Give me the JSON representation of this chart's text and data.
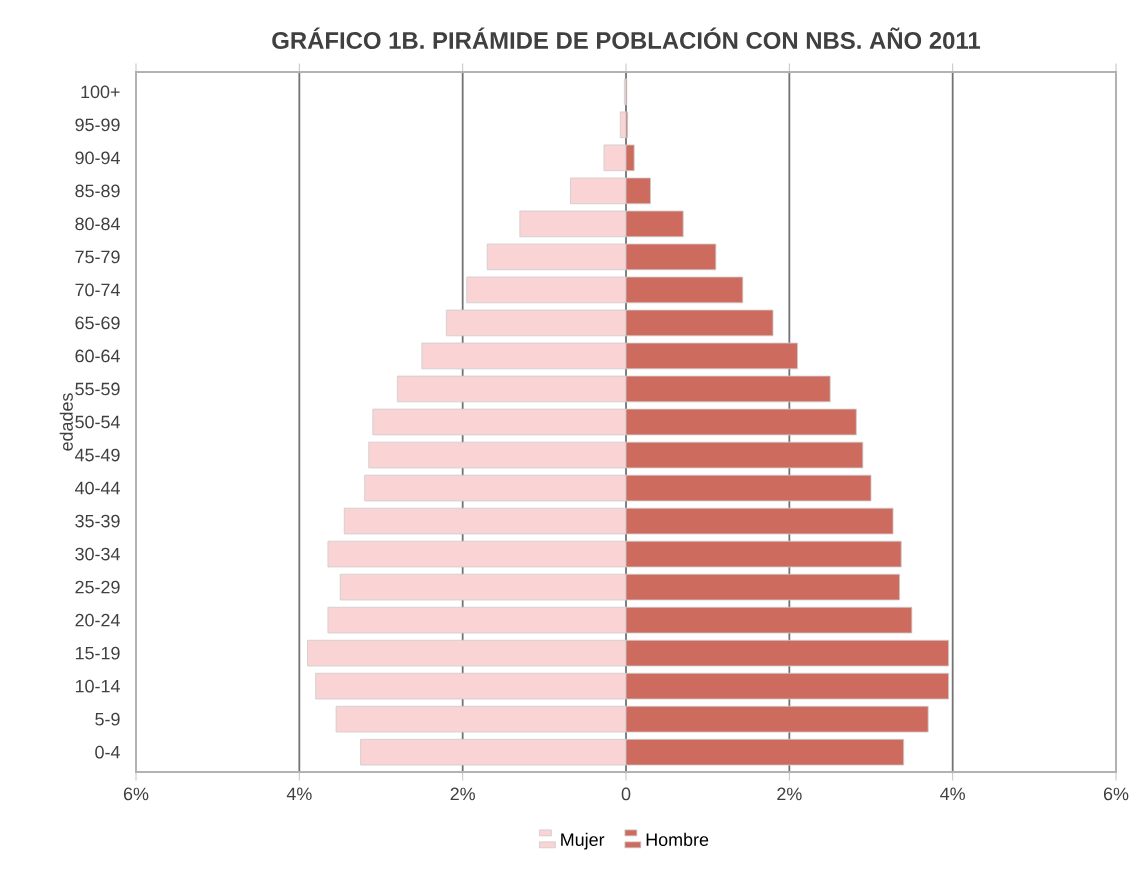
{
  "chart_data": {
    "type": "bar",
    "orientation": "horizontal",
    "title": "GRÁFICO 1B. PIRÁMIDE DE POBLACIÓN CON NBS. AÑO 2011",
    "ylabel": "edades",
    "categories": [
      "100+",
      "95-99",
      "90-94",
      "85-89",
      "80-84",
      "75-79",
      "70-74",
      "65-69",
      "60-64",
      "55-59",
      "50-54",
      "45-49",
      "40-44",
      "35-39",
      "30-34",
      "25-29",
      "20-24",
      "15-19",
      "10-14",
      "5-9",
      "0-4"
    ],
    "series": [
      {
        "name": "Mujer",
        "color": "#fad4d4",
        "values": [
          -0.02,
          -0.07,
          -0.27,
          -0.68,
          -1.3,
          -1.7,
          -1.95,
          -2.2,
          -2.5,
          -2.8,
          -3.1,
          -3.15,
          -3.2,
          -3.45,
          -3.65,
          -3.5,
          -3.65,
          -3.9,
          -3.8,
          -3.55,
          -3.25
        ]
      },
      {
        "name": "Hombre",
        "color": "#cd6b5e",
        "values": [
          0.01,
          0.02,
          0.1,
          0.3,
          0.7,
          1.1,
          1.43,
          1.8,
          2.1,
          2.5,
          2.82,
          2.9,
          3.0,
          3.27,
          3.37,
          3.35,
          3.5,
          3.95,
          3.95,
          3.7,
          3.4
        ]
      }
    ],
    "xlim": [
      -6,
      6
    ],
    "xticks": [
      {
        "value": -6,
        "label": "6%"
      },
      {
        "value": -4,
        "label": "4%"
      },
      {
        "value": -2,
        "label": "2%"
      },
      0,
      {
        "value": 2,
        "label": "2%"
      },
      {
        "value": 4,
        "label": "4%"
      },
      {
        "value": 6,
        "label": "6%"
      }
    ],
    "grid": "x",
    "legend": "bottom",
    "stacked": true
  }
}
